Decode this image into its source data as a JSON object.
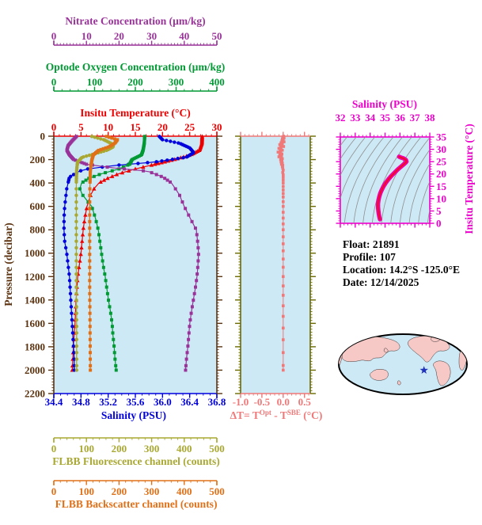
{
  "colors": {
    "nitrate": "#993399",
    "oxygen": "#009933",
    "temperature": "#ee0000",
    "salinity": "#0000dd",
    "pressure": "#5c3310",
    "fluorescence": "#a8a832",
    "backscatter": "#e07018",
    "delta_t": "#f07878",
    "delta_sides": "#6b6b00",
    "ts_axis": "#ee00cc",
    "ts_curve": "#ee00aa",
    "ts_curve_core": "#ee1111",
    "plot_bg": "#cde9f5",
    "contour_gray": "#909090",
    "land": "#f6c8c6",
    "ocean": "#cde9f5",
    "star": "#2233bb",
    "info_text": "#000000"
  },
  "top_axes": [
    {
      "id": "nitrate",
      "title": "Nitrate Concentration (µm/kg)",
      "min": 0,
      "max": 50,
      "ticks": [
        "0",
        "10",
        "20",
        "30",
        "40",
        "50"
      ],
      "minor_step": 1
    },
    {
      "id": "oxygen",
      "title": "Optode Oxygen Concentration (µm/kg)",
      "min": 0,
      "max": 400,
      "ticks": [
        "0",
        "100",
        "200",
        "300",
        "400"
      ],
      "minor_step": 20
    },
    {
      "id": "temperature",
      "title": "Insitu Temperature (°C)",
      "min": 0,
      "max": 30,
      "ticks": [
        "0",
        "5",
        "10",
        "15",
        "20",
        "25",
        "30"
      ],
      "minor_step": 1
    }
  ],
  "left_axis": {
    "title": "Pressure (decibar)",
    "min": 0,
    "max": 2200,
    "ticks": [
      "0",
      "200",
      "400",
      "600",
      "800",
      "1000",
      "1200",
      "1400",
      "1600",
      "1800",
      "2000",
      "2200"
    ],
    "minor_step": 25
  },
  "bottom_axis": {
    "id": "salinity",
    "title": "Salinity (PSU)",
    "min": 34.4,
    "max": 36.8,
    "ticks": [
      "34.4",
      "34.8",
      "35.2",
      "35.6",
      "36.0",
      "36.4",
      "36.8"
    ],
    "minor_step": 0.1
  },
  "flbb_axes": [
    {
      "id": "fluorescence",
      "title": "FLBB Fluorescence channel (counts)",
      "min": 0,
      "max": 500,
      "ticks": [
        "0",
        "100",
        "200",
        "300",
        "400",
        "500"
      ],
      "minor_step": 20
    },
    {
      "id": "backscatter",
      "title": "FLBB Backscatter channel (counts)",
      "min": 0,
      "max": 500,
      "ticks": [
        "0",
        "100",
        "200",
        "300",
        "400",
        "500"
      ],
      "minor_step": 20
    }
  ],
  "delta_panel": {
    "title_parts": {
      "pre": "ΔT= T",
      "sup1": "Opt",
      "mid": " - T",
      "sup2": "SBE",
      "post": " (°C)"
    },
    "min": -1.0,
    "max": 0.5,
    "ticks": [
      "-1.0",
      "-0.5",
      "0.0",
      "0.5"
    ],
    "minor_step": 0.1
  },
  "ts_panel": {
    "title": "Salinity (PSU)",
    "right_title": "Insitu Temperature (°C)",
    "s_min": 32,
    "s_max": 38,
    "s_ticks": [
      "32",
      "33",
      "34",
      "35",
      "36",
      "37",
      "38"
    ],
    "s_minor_step": 0.25,
    "t_min": 0,
    "t_max": 35,
    "t_ticks": [
      "0",
      "5",
      "10",
      "15",
      "20",
      "25",
      "30",
      "35"
    ],
    "t_minor_step": 1
  },
  "info": {
    "rows": [
      {
        "label": "Float:",
        "value": "21891"
      },
      {
        "label": "Profile:",
        "value": "107"
      },
      {
        "label": "Location:",
        "value": "14.2°S  -125.0°E"
      },
      {
        "label": "Date:",
        "value": "12/14/2025"
      }
    ]
  },
  "chart_data": [
    {
      "type": "line",
      "id": "pressure_profiles",
      "ylabel": "Pressure (decibar)",
      "ylim": [
        0,
        2200
      ],
      "grid": false,
      "series": [
        {
          "name": "Insitu Temperature",
          "units": "°C",
          "axis": "temperature",
          "marker": "triangle",
          "xlim": [
            0,
            30
          ],
          "points": [
            [
              0,
              27.3
            ],
            [
              60,
              27.25
            ],
            [
              120,
              26.8
            ],
            [
              160,
              25.2
            ],
            [
              200,
              22.1
            ],
            [
              240,
              18.6
            ],
            [
              280,
              15.0
            ],
            [
              320,
              12.0
            ],
            [
              360,
              9.9
            ],
            [
              400,
              8.3
            ],
            [
              450,
              7.4
            ],
            [
              500,
              6.8
            ],
            [
              600,
              6.1
            ],
            [
              700,
              5.7
            ],
            [
              800,
              5.4
            ],
            [
              900,
              5.2
            ],
            [
              1000,
              5.0
            ],
            [
              1100,
              4.7
            ],
            [
              1200,
              4.4
            ],
            [
              1300,
              4.25
            ],
            [
              1400,
              4.1
            ],
            [
              1500,
              4.0
            ],
            [
              1600,
              3.9
            ],
            [
              1700,
              3.75
            ],
            [
              1800,
              3.6
            ],
            [
              1900,
              3.5
            ],
            [
              2000,
              3.4
            ]
          ]
        },
        {
          "name": "Salinity",
          "units": "PSU",
          "axis": "salinity",
          "marker": "circle",
          "xlim": [
            34.4,
            36.8
          ],
          "points": [
            [
              0,
              35.95
            ],
            [
              30,
              36.0
            ],
            [
              60,
              36.25
            ],
            [
              100,
              36.4
            ],
            [
              140,
              36.46
            ],
            [
              180,
              36.35
            ],
            [
              220,
              35.9
            ],
            [
              250,
              35.3
            ],
            [
              280,
              34.9
            ],
            [
              300,
              34.77
            ],
            [
              350,
              34.63
            ],
            [
              400,
              34.61
            ],
            [
              450,
              34.59
            ],
            [
              500,
              34.58
            ],
            [
              600,
              34.56
            ],
            [
              700,
              34.55
            ],
            [
              800,
              34.55
            ],
            [
              900,
              34.56
            ],
            [
              1000,
              34.59
            ],
            [
              1100,
              34.61
            ],
            [
              1200,
              34.63
            ],
            [
              1300,
              34.64
            ],
            [
              1400,
              34.65
            ],
            [
              1500,
              34.66
            ],
            [
              1600,
              34.67
            ],
            [
              1700,
              34.68
            ],
            [
              1800,
              34.69
            ],
            [
              1900,
              34.7
            ],
            [
              2000,
              34.7
            ]
          ]
        },
        {
          "name": "Optode Oxygen Concentration",
          "units": "µm/kg",
          "axis": "oxygen",
          "marker": "square",
          "xlim": [
            0,
            400
          ],
          "points": [
            [
              0,
              223
            ],
            [
              60,
              222
            ],
            [
              120,
              219
            ],
            [
              160,
              215
            ],
            [
              200,
              192
            ],
            [
              240,
              186
            ],
            [
              280,
              160
            ],
            [
              320,
              118
            ],
            [
              360,
              86
            ],
            [
              400,
              68
            ],
            [
              450,
              64
            ],
            [
              500,
              70
            ],
            [
              600,
              93
            ],
            [
              700,
              102
            ],
            [
              800,
              109
            ],
            [
              900,
              113
            ],
            [
              1000,
              117
            ],
            [
              1100,
              121
            ],
            [
              1200,
              126
            ],
            [
              1300,
              130
            ],
            [
              1400,
              134
            ],
            [
              1500,
              139
            ],
            [
              1600,
              143
            ],
            [
              1700,
              145
            ],
            [
              1800,
              148
            ],
            [
              1900,
              150
            ],
            [
              2000,
              153
            ]
          ]
        },
        {
          "name": "Nitrate Concentration",
          "units": "µm/kg",
          "axis": "nitrate",
          "marker": "square",
          "xlim": [
            0,
            50
          ],
          "points": [
            [
              0,
              7.0
            ],
            [
              40,
              5.6
            ],
            [
              80,
              4.4
            ],
            [
              120,
              4.0
            ],
            [
              160,
              4.8
            ],
            [
              200,
              6.1
            ],
            [
              240,
              10.0
            ],
            [
              270,
              18.0
            ],
            [
              300,
              28.9
            ],
            [
              350,
              33.5
            ],
            [
              400,
              36.1
            ],
            [
              500,
              38.5
            ],
            [
              600,
              40.0
            ],
            [
              700,
              41.8
            ],
            [
              800,
              43.7
            ],
            [
              900,
              44.1
            ],
            [
              1000,
              44.4
            ],
            [
              1100,
              44.2
            ],
            [
              1200,
              43.9
            ],
            [
              1300,
              43.4
            ],
            [
              1400,
              42.8
            ],
            [
              1500,
              42.2
            ],
            [
              1600,
              41.7
            ],
            [
              1700,
              41.4
            ],
            [
              1800,
              41.1
            ],
            [
              1900,
              40.7
            ],
            [
              2000,
              40.4
            ]
          ]
        },
        {
          "name": "FLBB Fluorescence channel",
          "units": "counts",
          "axis": "fluorescence",
          "marker": "circle",
          "xlim": [
            0,
            500
          ],
          "points": [
            [
              0,
              114
            ],
            [
              30,
              153
            ],
            [
              60,
              175
            ],
            [
              90,
              183
            ],
            [
              120,
              163
            ],
            [
              150,
              126
            ],
            [
              180,
              87
            ],
            [
              220,
              73
            ],
            [
              260,
              71
            ],
            [
              300,
              70
            ],
            [
              400,
              69
            ],
            [
              500,
              69
            ],
            [
              700,
              69
            ],
            [
              1000,
              69
            ],
            [
              1300,
              69
            ],
            [
              1600,
              70
            ],
            [
              2000,
              70
            ]
          ]
        },
        {
          "name": "FLBB Backscatter channel",
          "units": "counts",
          "axis": "backscatter",
          "marker": "square",
          "xlim": [
            0,
            500
          ],
          "points": [
            [
              0,
              159
            ],
            [
              30,
              195
            ],
            [
              60,
              187
            ],
            [
              90,
              170
            ],
            [
              120,
              138
            ],
            [
              160,
              121
            ],
            [
              200,
              117
            ],
            [
              250,
              114
            ],
            [
              300,
              112
            ],
            [
              400,
              111
            ],
            [
              500,
              110
            ],
            [
              700,
              110
            ],
            [
              1000,
              110
            ],
            [
              1300,
              110
            ],
            [
              1600,
              111
            ],
            [
              2000,
              112
            ]
          ]
        }
      ]
    },
    {
      "type": "line",
      "id": "delta_t",
      "xlabel": "ΔT= T(Opt) - T(SBE) (°C)",
      "xlim": [
        -1.0,
        0.5
      ],
      "ylim": [
        0,
        2200
      ],
      "points": [
        [
          0,
          0.01
        ],
        [
          8,
          -0.01
        ],
        [
          16,
          0.02
        ],
        [
          24,
          -0.02
        ],
        [
          32,
          0.0
        ],
        [
          40,
          -0.03
        ],
        [
          48,
          0.02
        ],
        [
          56,
          -0.05
        ],
        [
          64,
          -0.02
        ],
        [
          72,
          -0.08
        ],
        [
          80,
          -0.04
        ],
        [
          88,
          0.01
        ],
        [
          96,
          -0.06
        ],
        [
          104,
          -0.1
        ],
        [
          112,
          -0.05
        ],
        [
          120,
          -0.02
        ],
        [
          128,
          -0.07
        ],
        [
          136,
          -0.12
        ],
        [
          144,
          -0.06
        ],
        [
          152,
          -0.03
        ],
        [
          160,
          -0.08
        ],
        [
          168,
          -0.04
        ],
        [
          176,
          -0.1
        ],
        [
          184,
          -0.05
        ],
        [
          192,
          -0.02
        ],
        [
          200,
          -0.06
        ],
        [
          210,
          -0.03
        ],
        [
          220,
          -0.05
        ],
        [
          230,
          -0.02
        ],
        [
          240,
          -0.04
        ],
        [
          250,
          -0.01
        ],
        [
          260,
          -0.02
        ],
        [
          275,
          -0.01
        ],
        [
          290,
          0.0
        ],
        [
          310,
          -0.01
        ],
        [
          330,
          0.0
        ],
        [
          350,
          0.0
        ],
        [
          375,
          0.0
        ],
        [
          400,
          0.0
        ],
        [
          430,
          0.0
        ],
        [
          460,
          0.0
        ],
        [
          490,
          0.0
        ],
        [
          520,
          0.0
        ],
        [
          560,
          0.0
        ],
        [
          600,
          0.0
        ],
        [
          650,
          0.0
        ],
        [
          700,
          0.0
        ],
        [
          750,
          0.0
        ],
        [
          800,
          0.0
        ],
        [
          860,
          0.0
        ],
        [
          920,
          0.0
        ],
        [
          980,
          0.0
        ],
        [
          1050,
          0.0
        ],
        [
          1120,
          0.0
        ],
        [
          1200,
          0.0
        ],
        [
          1280,
          0.0
        ],
        [
          1360,
          0.0
        ],
        [
          1450,
          0.0
        ],
        [
          1540,
          0.0
        ],
        [
          1640,
          0.0
        ],
        [
          1740,
          0.0
        ],
        [
          1850,
          0.0
        ],
        [
          1960,
          0.0
        ],
        [
          2000,
          0.0
        ]
      ]
    },
    {
      "type": "line",
      "id": "ts_diagram",
      "xlabel": "Salinity (PSU)",
      "ylabel": "Insitu Temperature (°C)",
      "xlim": [
        32,
        38
      ],
      "ylim": [
        0,
        35
      ],
      "points": [
        [
          34.66,
          1.6
        ],
        [
          34.62,
          2.6
        ],
        [
          34.58,
          3.8
        ],
        [
          34.55,
          5.2
        ],
        [
          34.53,
          6.6
        ],
        [
          34.53,
          8.0
        ],
        [
          34.56,
          9.4
        ],
        [
          34.61,
          10.8
        ],
        [
          34.68,
          12.2
        ],
        [
          34.78,
          13.6
        ],
        [
          34.9,
          15.0
        ],
        [
          35.05,
          16.4
        ],
        [
          35.22,
          17.8
        ],
        [
          35.42,
          19.2
        ],
        [
          35.63,
          20.5
        ],
        [
          35.85,
          21.8
        ],
        [
          36.07,
          23.0
        ],
        [
          36.25,
          23.9
        ],
        [
          36.38,
          24.6
        ],
        [
          36.44,
          25.0
        ],
        [
          36.4,
          25.7
        ],
        [
          36.25,
          26.3
        ],
        [
          36.05,
          26.7
        ],
        [
          35.94,
          27.0
        ]
      ]
    },
    {
      "type": "map",
      "id": "location_map",
      "star": {
        "lat": "14.2°S",
        "lon": "-125.0°E",
        "fx": 0.665,
        "fy": 0.6
      }
    }
  ]
}
